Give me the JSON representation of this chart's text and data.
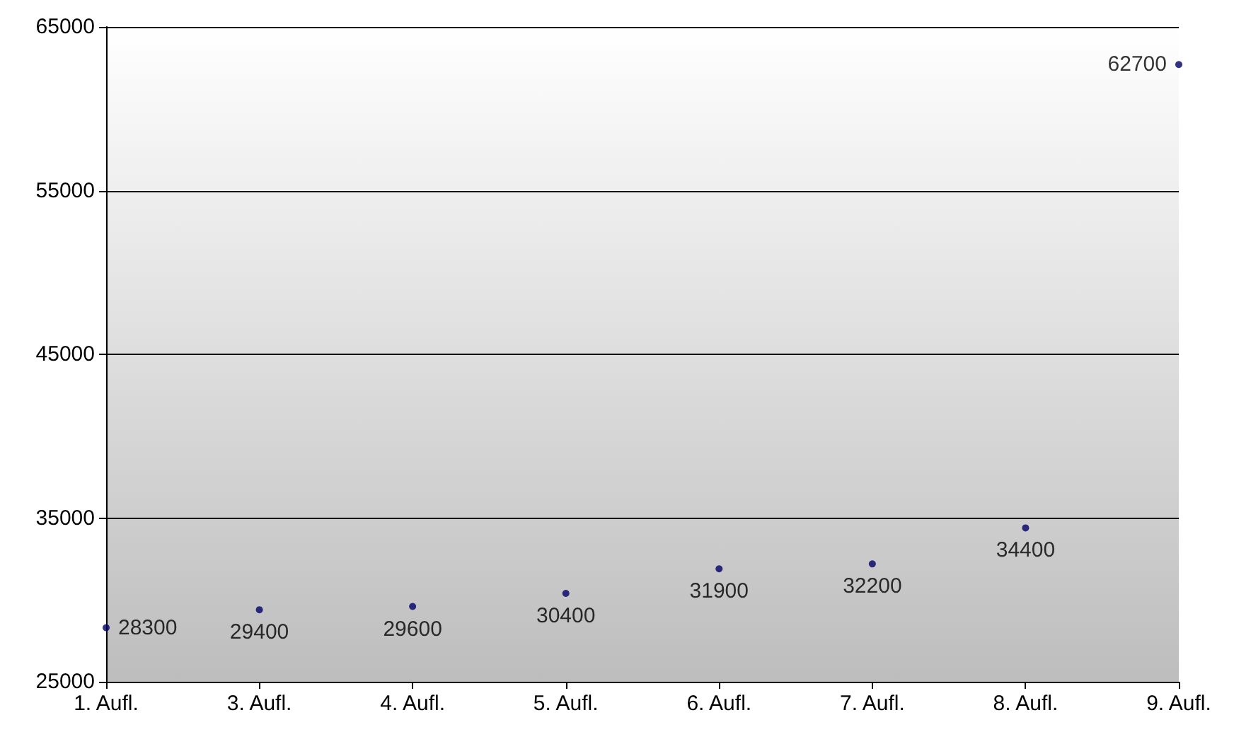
{
  "chart_data": {
    "type": "scatter",
    "categories": [
      "1. Aufl.",
      "3. Aufl.",
      "4. Aufl.",
      "5. Aufl.",
      "6. Aufl.",
      "7. Aufl.",
      "8. Aufl.",
      "9. Aufl."
    ],
    "series": [
      {
        "color": "#000066",
        "values": [
          28300,
          29400,
          29600,
          30400,
          31900,
          32200,
          34400,
          62700
        ]
      }
    ],
    "ylim": [
      25000,
      65000
    ],
    "yticks": [
      25000,
      35000,
      45000,
      55000,
      65000
    ],
    "grid": "y",
    "marker": "circle",
    "data_labels": true
  }
}
